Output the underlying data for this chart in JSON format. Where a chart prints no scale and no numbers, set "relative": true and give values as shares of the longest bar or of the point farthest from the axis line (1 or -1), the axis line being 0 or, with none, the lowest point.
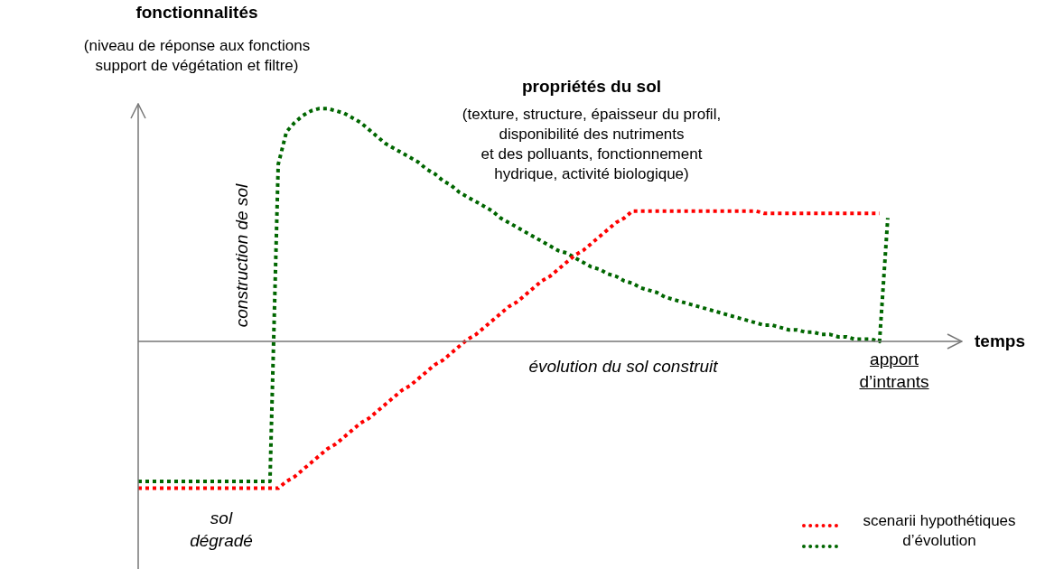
{
  "chart_data": {
    "type": "line",
    "relative": true,
    "title": "fonctionnalités",
    "subtitle": "(niveau de réponse aux fonctions\nsupport de végétation et filtre)",
    "xlabel": "temps",
    "line_style": "dotted",
    "categories": [
      null,
      null,
      null,
      null,
      null,
      null,
      null,
      null,
      null,
      null,
      null,
      null,
      null,
      null,
      null,
      null,
      null,
      null,
      null,
      null,
      null,
      null,
      null,
      null,
      null,
      null,
      null,
      null,
      null,
      null,
      null,
      null,
      null,
      null,
      null,
      null,
      null,
      null,
      null,
      null,
      null,
      null,
      null,
      null,
      null,
      null,
      null,
      null,
      null,
      null,
      null,
      null,
      null,
      null,
      null,
      null,
      null,
      null,
      null,
      null,
      null,
      null,
      null,
      null,
      null,
      null,
      null,
      null,
      null,
      null,
      null,
      null,
      null,
      null,
      null,
      null,
      null,
      null,
      null,
      null,
      null,
      null,
      null,
      null,
      null,
      null,
      null,
      null,
      null,
      null,
      null,
      null,
      null,
      null,
      null,
      null,
      null,
      null,
      null,
      null,
      null
    ],
    "series": [
      {
        "color": "#ff0000",
        "values": [
          -0.63,
          -0.63,
          -0.63,
          -0.63,
          -0.63,
          -0.63,
          -0.63,
          -0.63,
          -0.63,
          -0.63,
          -0.63,
          -0.63,
          -0.63,
          -0.63,
          -0.63,
          -0.63,
          -0.63,
          -0.63,
          -0.6,
          -0.58,
          -0.55,
          -0.52,
          -0.49,
          -0.46,
          -0.44,
          -0.41,
          -0.38,
          -0.35,
          -0.33,
          -0.3,
          -0.27,
          -0.24,
          -0.21,
          -0.19,
          -0.16,
          -0.13,
          -0.1,
          -0.08,
          -0.05,
          -0.02,
          0.01,
          0.03,
          0.06,
          0.09,
          0.12,
          0.15,
          0.17,
          0.2,
          0.23,
          0.26,
          0.28,
          0.31,
          0.34,
          0.37,
          0.39,
          0.42,
          0.45,
          0.48,
          0.51,
          0.53,
          0.56,
          0.56,
          0.56,
          0.56,
          0.56,
          0.56,
          0.56,
          0.56,
          0.56,
          0.56,
          0.56,
          0.56,
          0.56,
          0.56,
          0.56,
          0.56,
          0.55,
          0.55,
          0.55,
          0.55,
          0.55,
          0.55,
          0.55,
          0.55,
          0.55,
          0.55,
          0.55,
          0.55,
          0.55,
          0.55,
          0.55,
          null,
          null,
          null,
          null,
          null,
          null,
          null,
          null,
          null,
          null
        ]
      },
      {
        "color": "#006600",
        "values": [
          -0.6,
          -0.6,
          -0.6,
          -0.6,
          -0.6,
          -0.6,
          -0.6,
          -0.6,
          -0.6,
          -0.6,
          -0.6,
          -0.6,
          -0.6,
          -0.6,
          -0.6,
          -0.6,
          -0.6,
          0.76,
          0.9,
          0.94,
          0.97,
          0.99,
          1,
          1,
          0.99,
          0.98,
          0.96,
          0.94,
          0.91,
          0.88,
          0.85,
          0.83,
          0.81,
          0.79,
          0.77,
          0.74,
          0.72,
          0.69,
          0.67,
          0.64,
          0.62,
          0.6,
          0.58,
          0.56,
          0.53,
          0.51,
          0.49,
          0.47,
          0.45,
          0.43,
          0.41,
          0.39,
          0.38,
          0.36,
          0.34,
          0.32,
          0.31,
          0.29,
          0.28,
          0.26,
          0.25,
          0.23,
          0.22,
          0.21,
          0.19,
          0.18,
          0.17,
          0.16,
          0.15,
          0.14,
          0.13,
          0.12,
          0.11,
          0.1,
          0.09,
          0.08,
          0.07,
          0.07,
          0.06,
          0.05,
          0.05,
          0.04,
          0.04,
          0.03,
          0.03,
          0.02,
          0.02,
          0.01,
          0.01,
          0.01,
          0,
          0.53,
          null,
          null,
          null,
          null,
          null,
          null,
          null,
          null,
          null
        ]
      }
    ],
    "annotations": [
      "propriétés du sol",
      "(texture, structure, épaisseur du profil,\ndisponibilité des nutriments\net des polluants, fonctionnement\nhydrique, activité biologique)",
      "construction de sol",
      "évolution du sol construit",
      "apport\nd’intrants",
      "sol\ndégradé",
      "scenarii hypothétiques\nd’évolution"
    ]
  }
}
